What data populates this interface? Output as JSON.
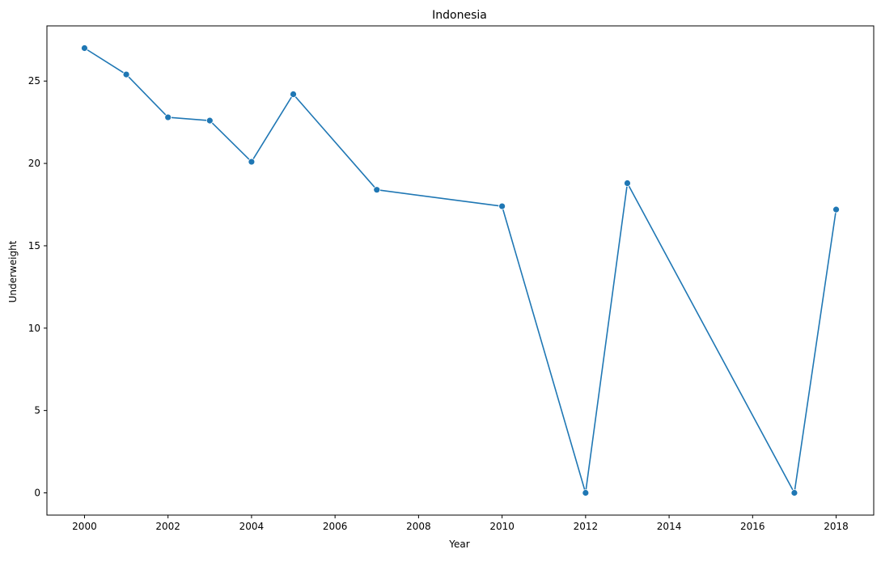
{
  "chart_data": {
    "type": "line",
    "title": "Indonesia",
    "xlabel": "Year",
    "ylabel": "Underweight",
    "xlim": [
      1999.1,
      2018.9
    ],
    "ylim": [
      -1.35,
      28.35
    ],
    "xticks": [
      2000,
      2002,
      2004,
      2006,
      2008,
      2010,
      2012,
      2014,
      2016,
      2018
    ],
    "yticks": [
      0,
      5,
      10,
      15,
      20,
      25
    ],
    "grid": false,
    "legend": "none",
    "series": [
      {
        "color": "#1f77b4",
        "marker": "circle",
        "x": [
          2000,
          2001,
          2002,
          2003,
          2004,
          2005,
          2007,
          2010,
          2012,
          2013,
          2017,
          2018
        ],
        "y": [
          27.0,
          25.4,
          22.8,
          22.6,
          20.1,
          24.2,
          18.4,
          17.4,
          0.0,
          18.8,
          0.0,
          17.2
        ]
      }
    ]
  }
}
